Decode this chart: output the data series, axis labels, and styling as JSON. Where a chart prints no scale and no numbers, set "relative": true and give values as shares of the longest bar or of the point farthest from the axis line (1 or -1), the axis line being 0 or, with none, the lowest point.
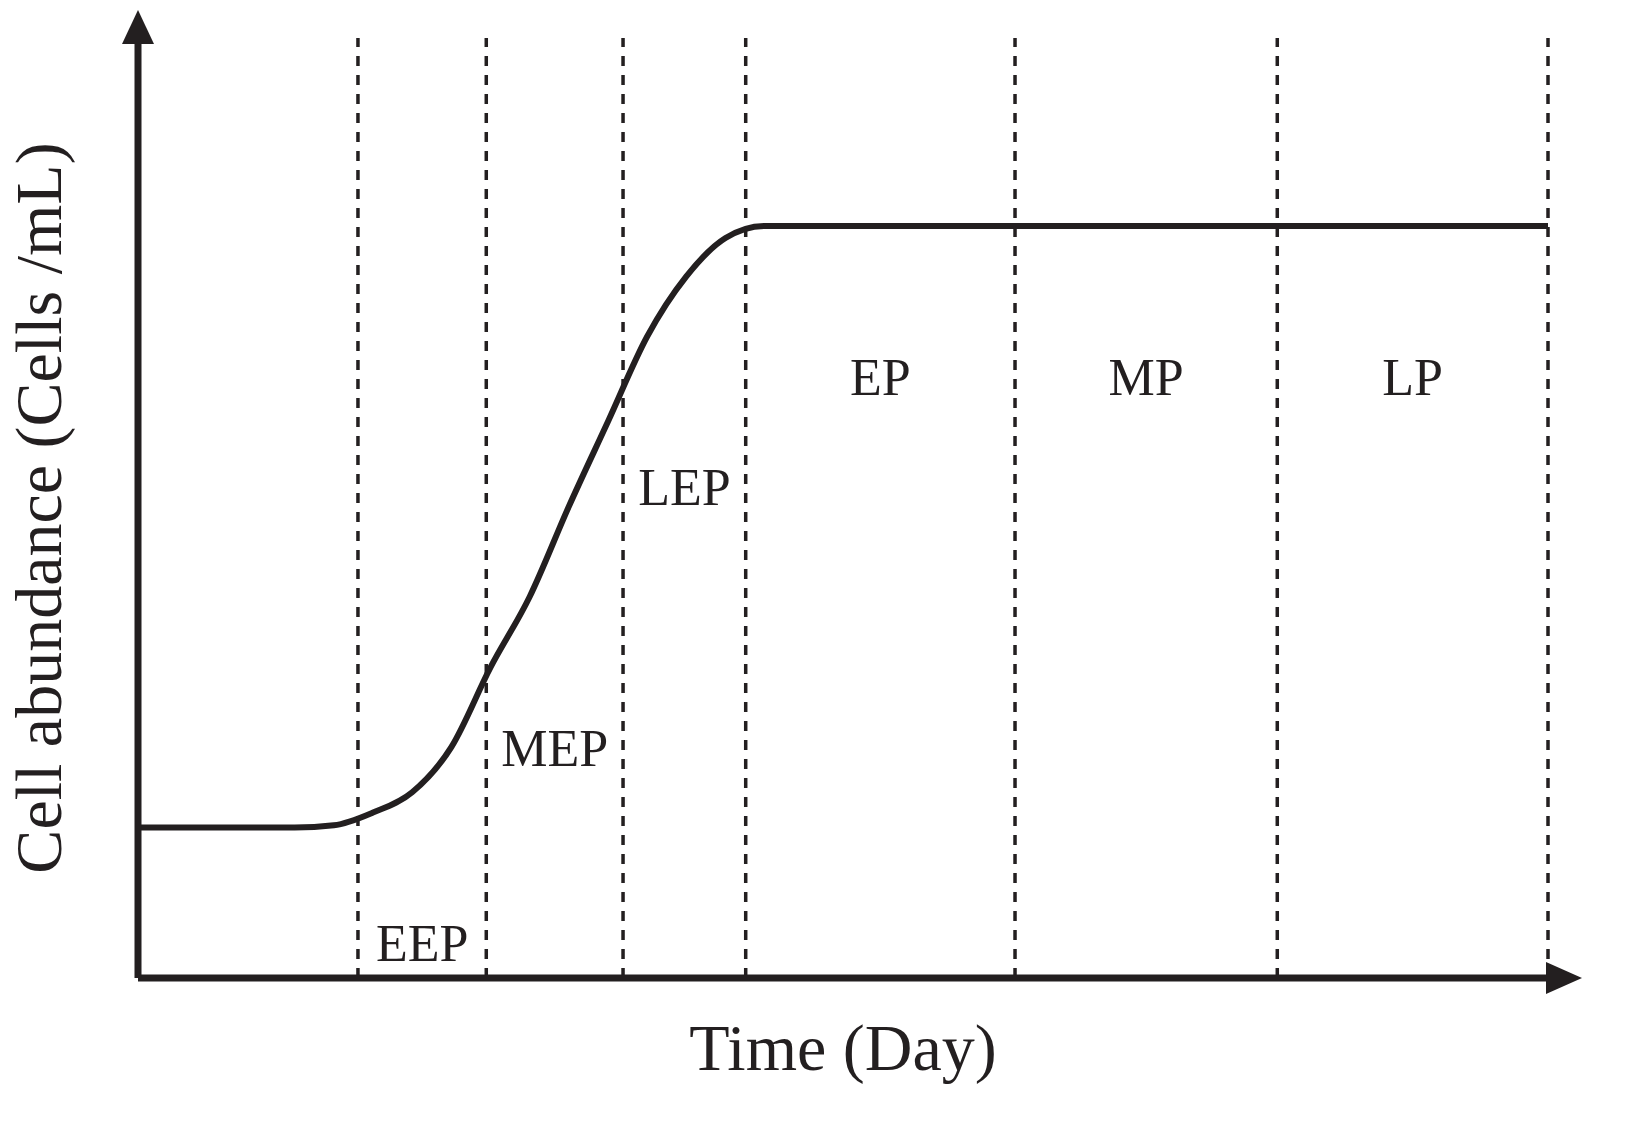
{
  "chart_data": {
    "type": "line",
    "relative": true,
    "xlabel": "Time (Day)",
    "ylabel": "Cell abundance (Cells /mL)",
    "categories": [
      null,
      null,
      null,
      null,
      null,
      null,
      null,
      null,
      null,
      null,
      null,
      null,
      null,
      null,
      null,
      null,
      null,
      null,
      null,
      null,
      null,
      null,
      null,
      null,
      null,
      null,
      null,
      null,
      null,
      null,
      null,
      null,
      null,
      null,
      null,
      null,
      null
    ],
    "values": [
      0.2,
      0.2,
      0.2,
      0.2,
      0.2,
      0.203,
      0.22,
      0.247,
      0.307,
      0.413,
      0.507,
      0.627,
      0.74,
      0.853,
      0.933,
      0.984,
      1,
      1,
      1,
      1,
      1,
      1,
      1,
      1,
      1,
      1,
      1,
      1,
      1,
      1,
      1,
      1,
      1,
      1,
      1,
      1,
      1
    ],
    "color": "#231f20",
    "marker": "none",
    "line_style": "solid",
    "grid": false,
    "legend": false,
    "annotations": [
      "EEP",
      "MEP",
      "LEP",
      "EP",
      "MP",
      "LP"
    ]
  }
}
